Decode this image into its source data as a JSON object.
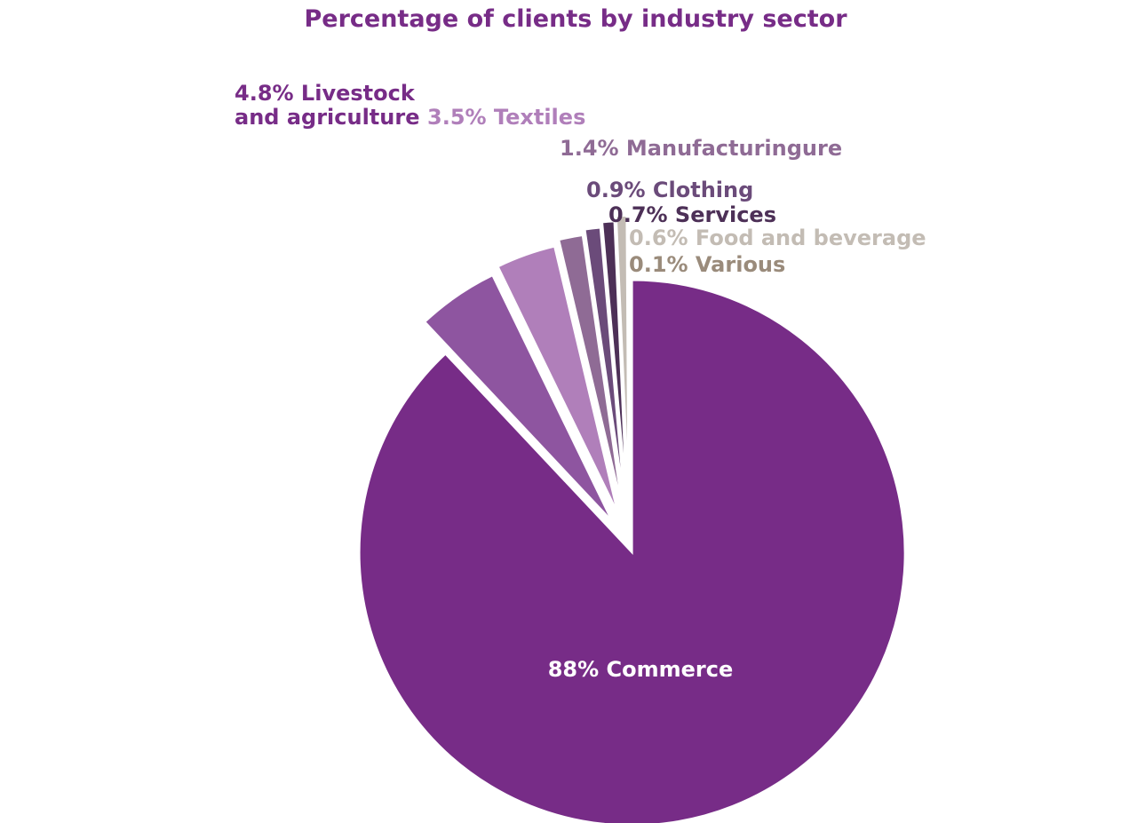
{
  "chart_data": {
    "type": "pie",
    "title": "Percentage of clients by industry sector",
    "slices": [
      {
        "label": "Commerce",
        "value": 88,
        "value_text": "88%",
        "color": "#772c87",
        "exploded": false
      },
      {
        "label": "Livestock and agriculture",
        "value": 4.8,
        "value_text": "4.8%",
        "color": "#8e55a0",
        "exploded": true
      },
      {
        "label": "Textiles",
        "value": 3.5,
        "value_text": "3.5%",
        "color": "#b07fba",
        "exploded": true
      },
      {
        "label": "Manufacturingure",
        "value": 1.4,
        "value_text": "1.4%",
        "color": "#8f6b95",
        "exploded": true
      },
      {
        "label": "Clothing",
        "value": 0.9,
        "value_text": "0.9%",
        "color": "#6b4b7a",
        "exploded": true
      },
      {
        "label": "Services",
        "value": 0.7,
        "value_text": "0.7%",
        "color": "#4d3057",
        "exploded": true
      },
      {
        "label": "Food and beverage",
        "value": 0.6,
        "value_text": "0.6%",
        "color": "#c3bcb4",
        "exploded": true
      },
      {
        "label": "Various",
        "value": 0.1,
        "value_text": "0.1%",
        "color": "#9a8b7b",
        "exploded": true
      }
    ],
    "label_colors": {
      "Commerce": "#ffffff",
      "Livestock and agriculture": "#772c87",
      "Textiles": "#b07fba",
      "Manufacturingure": "#8f6b95",
      "Clothing": "#6b4b7a",
      "Services": "#4d3057",
      "Food and beverage": "#c3bcb4",
      "Various": "#9a8b7b"
    }
  }
}
